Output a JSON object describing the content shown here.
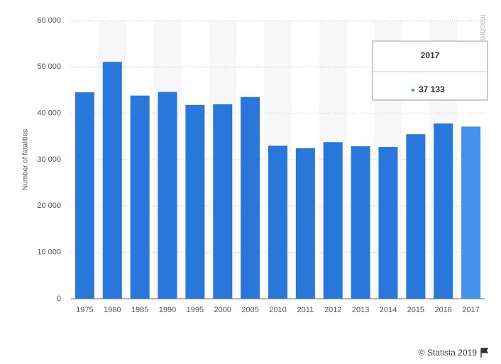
{
  "chart_data": {
    "type": "bar",
    "y_label": "Number of fatalities",
    "categories": [
      "1975",
      "1980",
      "1985",
      "1990",
      "1995",
      "2000",
      "2005",
      "2010",
      "2011",
      "2012",
      "2013",
      "2014",
      "2015",
      "2016",
      "2017"
    ],
    "values": [
      44525,
      51091,
      43825,
      44599,
      41817,
      41945,
      43510,
      32999,
      32479,
      33782,
      32893,
      32744,
      35484,
      37806,
      37133
    ],
    "value_labels": [
      null,
      null,
      null,
      null,
      null,
      null,
      null,
      null,
      null,
      null,
      null,
      null,
      null,
      null,
      "37 133"
    ],
    "colors": [
      "#2a77dc",
      "#2a77dc",
      "#2a77dc",
      "#2a77dc",
      "#2a77dc",
      "#2a77dc",
      "#2a77dc",
      "#2a77dc",
      "#2a77dc",
      "#2a77dc",
      "#2a77dc",
      "#2a77dc",
      "#2a77dc",
      "#2a77dc",
      "#4591ee"
    ],
    "ylim": [
      0,
      60000
    ],
    "yticks": [
      0,
      {
        "value": 10000,
        "label": "10 000"
      },
      {
        "value": 20000,
        "label": "20 000"
      },
      {
        "value": 30000,
        "label": "30 000"
      },
      {
        "value": 40000,
        "label": "40 000"
      },
      {
        "value": 50000,
        "label": "50 000"
      },
      {
        "value": 60000,
        "label": "60 000"
      }
    ],
    "grid": true,
    "credit": "© Statista 2019",
    "watermark": "mashreghnews.ir"
  }
}
